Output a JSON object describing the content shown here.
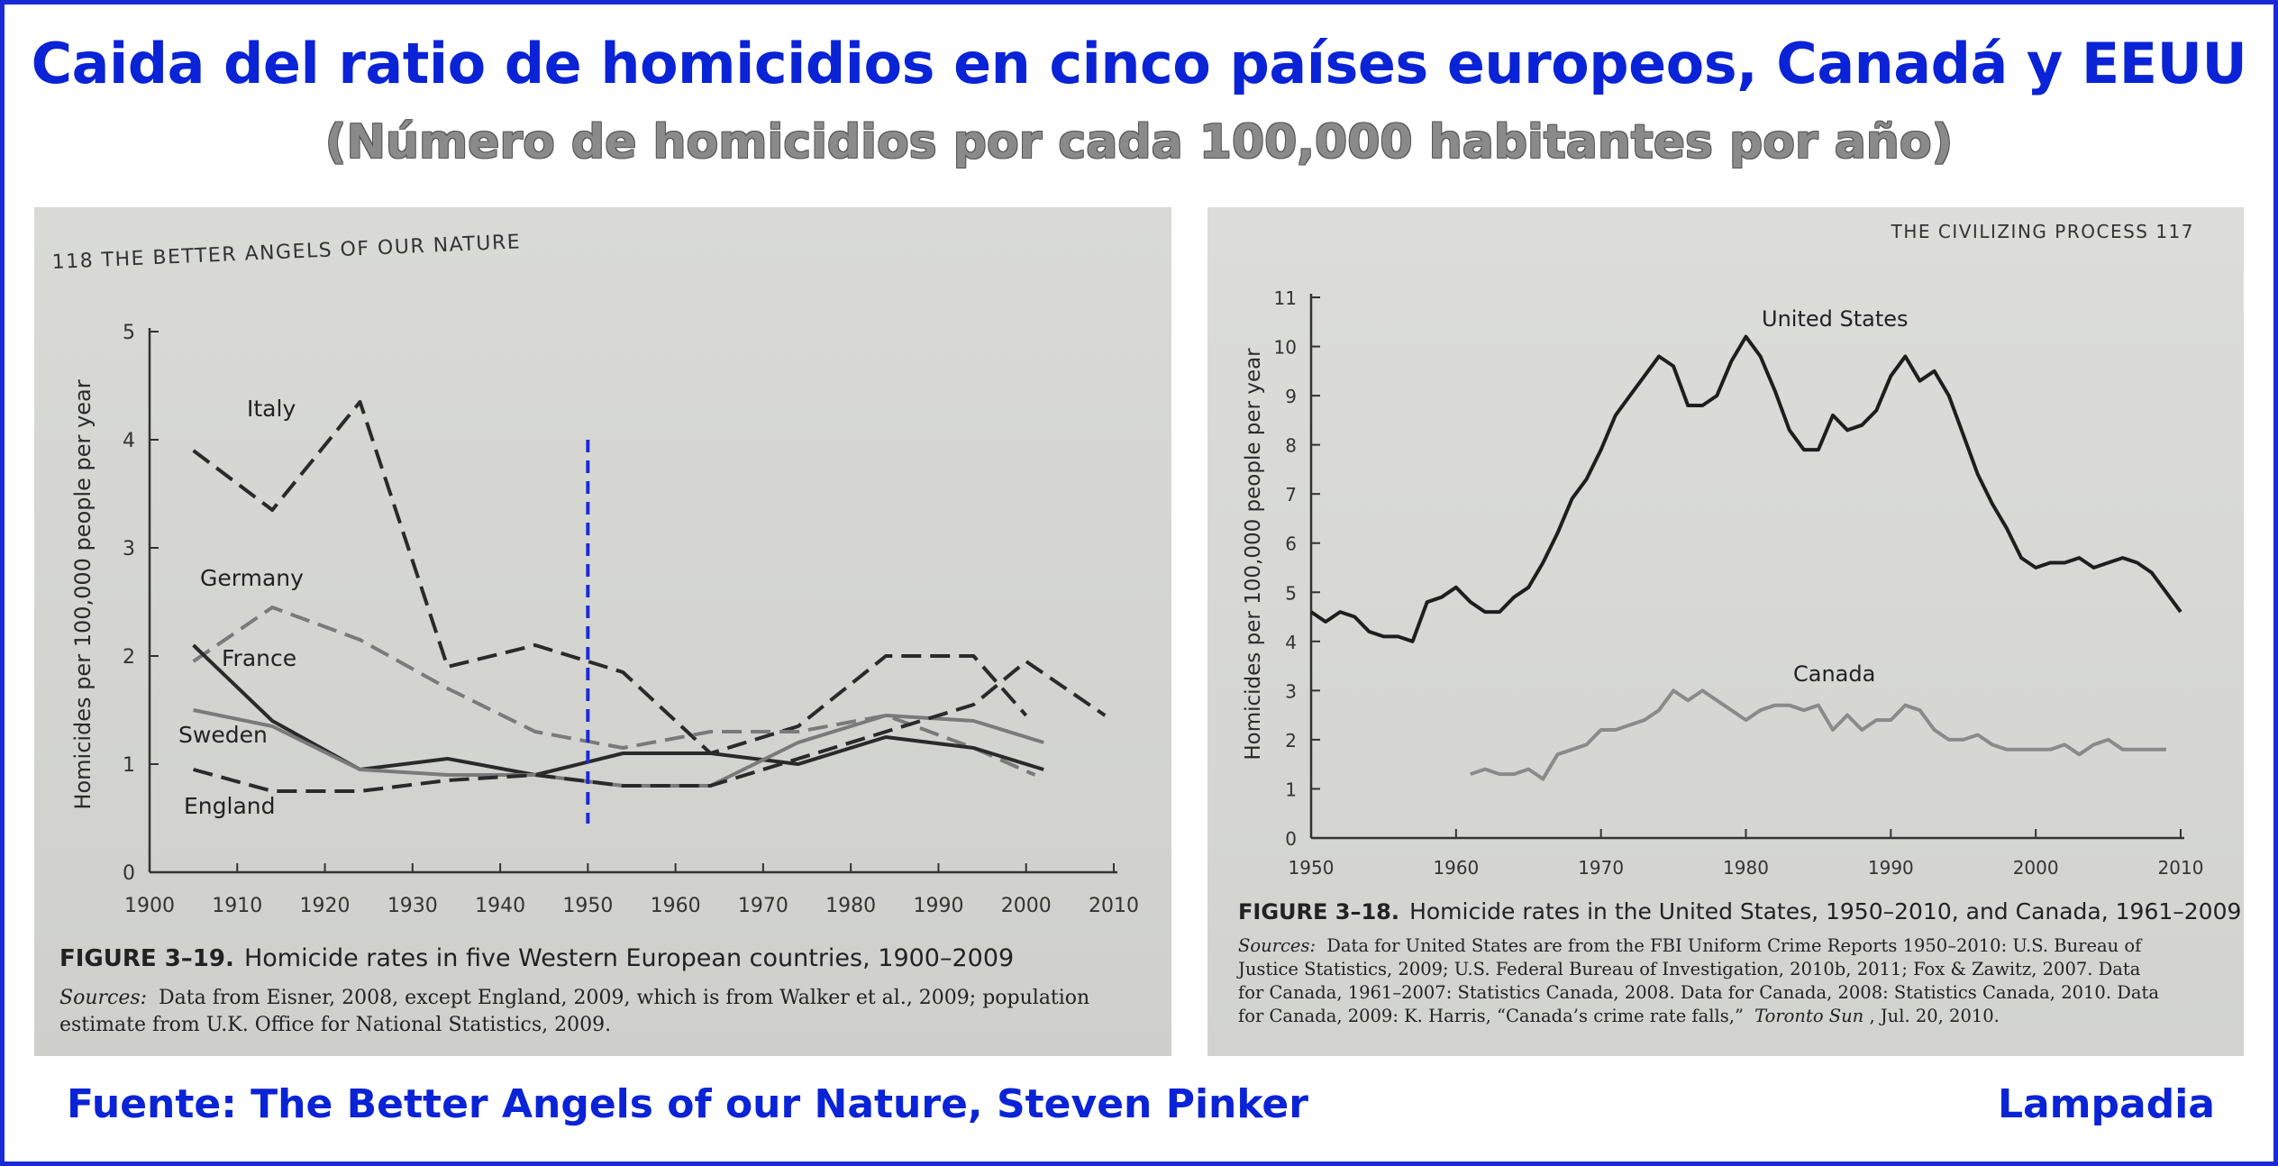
{
  "header": {
    "title": "Caida del ratio de homicidios en cinco países europeos, Canadá y EEUU",
    "subtitle": "(Número de homicidios por cada 100,000 habitantes por año)"
  },
  "footer": {
    "source": "Fuente: The Better Angels of our Nature, Steven Pinker",
    "brand": "Lampadia"
  },
  "colors": {
    "accent": "#0a23d6",
    "subtitle": "#8a8a8a",
    "ink": "#2a2a2a",
    "gray_series": "#7a7a7a",
    "marker_line": "#1a2bd6"
  },
  "left_page": {
    "running_head": "118  THE BETTER ANGELS OF OUR NATURE",
    "caption_label": "FIGURE 3–19.",
    "caption_text": "Homicide rates in five Western European countries, 1900–2009",
    "sources_label": "Sources:",
    "sources_line1": "Data from Eisner, 2008, except England, 2009, which is from Walker et al., 2009; population",
    "sources_line2": "estimate from U.K. Office for National Statistics, 2009."
  },
  "right_page": {
    "running_head": "THE CIVILIZING PROCESS  117",
    "caption_label": "FIGURE 3–18.",
    "caption_text": "Homicide rates in the United States, 1950–2010, and Canada, 1961–2009",
    "sources_label": "Sources:",
    "sources_line1": "Data for United States are from the FBI Uniform Crime Reports 1950–2010: U.S. Bureau of",
    "sources_line2": "Justice Statistics, 2009; U.S. Federal Bureau of Investigation, 2010b, 2011; Fox & Zawitz, 2007. Data",
    "sources_line3": "for Canada, 1961–2007: Statistics Canada, 2008. Data for Canada, 2008: Statistics Canada, 2010. Data",
    "sources_line4": "for Canada, 2009: K. Harris, “Canada’s crime rate falls,”",
    "sources_italic": "Toronto Sun",
    "sources_end": ", Jul. 20, 2010."
  },
  "chart_data": [
    {
      "type": "line",
      "ylabel": "Homicides per 100,000 people per year",
      "xlabel": "",
      "xlim": [
        1900,
        2010
      ],
      "ylim": [
        0,
        5
      ],
      "x_ticks": [
        1900,
        1910,
        1920,
        1930,
        1940,
        1950,
        1960,
        1970,
        1980,
        1990,
        2000,
        2010
      ],
      "y_ticks": [
        0,
        1,
        2,
        3,
        4,
        5
      ],
      "annotation_year": 1950,
      "series": [
        {
          "name": "Italy",
          "style": "dash",
          "color": "#2a2a2a",
          "x": [
            1905,
            1914,
            1924,
            1934,
            1944,
            1950,
            1954,
            1964,
            1974,
            1984,
            1994,
            2000
          ],
          "y": [
            3.9,
            3.35,
            4.35,
            1.9,
            2.1,
            1.95,
            1.85,
            1.1,
            1.35,
            2.0,
            2.0,
            1.45
          ]
        },
        {
          "name": "Germany",
          "style": "dash",
          "color": "#7a7a7a",
          "x": [
            1905,
            1914,
            1924,
            1934,
            1944,
            1954,
            1964,
            1974,
            1984,
            1994,
            2001
          ],
          "y": [
            1.95,
            2.45,
            2.15,
            1.7,
            1.3,
            1.15,
            1.3,
            1.3,
            1.45,
            1.15,
            0.9
          ]
        },
        {
          "name": "France",
          "style": "solid",
          "color": "#2a2a2a",
          "x": [
            1905,
            1914,
            1924,
            1934,
            1944,
            1954,
            1964,
            1974,
            1984,
            1994,
            2002
          ],
          "y": [
            2.1,
            1.4,
            0.95,
            1.05,
            0.9,
            1.1,
            1.1,
            1.0,
            1.25,
            1.15,
            0.95
          ]
        },
        {
          "name": "Sweden",
          "style": "solid",
          "color": "#7a7a7a",
          "x": [
            1905,
            1914,
            1924,
            1934,
            1944,
            1954,
            1964,
            1974,
            1984,
            1994,
            2002
          ],
          "y": [
            1.5,
            1.35,
            0.95,
            0.9,
            0.9,
            0.8,
            0.8,
            1.2,
            1.45,
            1.4,
            1.2
          ]
        },
        {
          "name": "England",
          "style": "dash",
          "color": "#2a2a2a",
          "x": [
            1905,
            1914,
            1924,
            1934,
            1944,
            1954,
            1964,
            1974,
            1984,
            1994,
            2000,
            2009
          ],
          "y": [
            0.95,
            0.75,
            0.75,
            0.85,
            0.9,
            0.8,
            0.8,
            1.05,
            1.3,
            1.55,
            1.95,
            1.45
          ]
        }
      ]
    },
    {
      "type": "line",
      "ylabel": "Homicides per 100,000 people per year",
      "xlabel": "",
      "xlim": [
        1950,
        2010
      ],
      "ylim": [
        0,
        11
      ],
      "x_ticks": [
        1950,
        1960,
        1970,
        1980,
        1990,
        2000,
        2010
      ],
      "y_ticks": [
        0,
        1,
        2,
        3,
        4,
        5,
        6,
        7,
        8,
        9,
        10,
        11
      ],
      "series": [
        {
          "name": "United States",
          "style": "solid",
          "color": "#1e1e1e",
          "x": [
            1950,
            1951,
            1952,
            1953,
            1954,
            1955,
            1956,
            1957,
            1958,
            1959,
            1960,
            1961,
            1962,
            1963,
            1964,
            1965,
            1966,
            1967,
            1968,
            1969,
            1970,
            1971,
            1972,
            1973,
            1974,
            1975,
            1976,
            1977,
            1978,
            1979,
            1980,
            1981,
            1982,
            1983,
            1984,
            1985,
            1986,
            1987,
            1988,
            1989,
            1990,
            1991,
            1992,
            1993,
            1994,
            1995,
            1996,
            1997,
            1998,
            1999,
            2000,
            2001,
            2002,
            2003,
            2004,
            2005,
            2006,
            2007,
            2008,
            2009,
            2010
          ],
          "y": [
            4.6,
            4.4,
            4.6,
            4.5,
            4.2,
            4.1,
            4.1,
            4.0,
            4.8,
            4.9,
            5.1,
            4.8,
            4.6,
            4.6,
            4.9,
            5.1,
            5.6,
            6.2,
            6.9,
            7.3,
            7.9,
            8.6,
            9.0,
            9.4,
            9.8,
            9.6,
            8.8,
            8.8,
            9.0,
            9.7,
            10.2,
            9.8,
            9.1,
            8.3,
            7.9,
            7.9,
            8.6,
            8.3,
            8.4,
            8.7,
            9.4,
            9.8,
            9.3,
            9.5,
            9.0,
            8.2,
            7.4,
            6.8,
            6.3,
            5.7,
            5.5,
            5.6,
            5.6,
            5.7,
            5.5,
            5.6,
            5.7,
            5.6,
            5.4,
            5.0,
            4.6
          ]
        },
        {
          "name": "Canada",
          "style": "solid",
          "color": "#8a8a8a",
          "x": [
            1961,
            1962,
            1963,
            1964,
            1965,
            1966,
            1967,
            1968,
            1969,
            1970,
            1971,
            1972,
            1973,
            1974,
            1975,
            1976,
            1977,
            1978,
            1979,
            1980,
            1981,
            1982,
            1983,
            1984,
            1985,
            1986,
            1987,
            1988,
            1989,
            1990,
            1991,
            1992,
            1993,
            1994,
            1995,
            1996,
            1997,
            1998,
            1999,
            2000,
            2001,
            2002,
            2003,
            2004,
            2005,
            2006,
            2007,
            2008,
            2009
          ],
          "y": [
            1.3,
            1.4,
            1.3,
            1.3,
            1.4,
            1.2,
            1.7,
            1.8,
            1.9,
            2.2,
            2.2,
            2.3,
            2.4,
            2.6,
            3.0,
            2.8,
            3.0,
            2.8,
            2.6,
            2.4,
            2.6,
            2.7,
            2.7,
            2.6,
            2.7,
            2.2,
            2.5,
            2.2,
            2.4,
            2.4,
            2.7,
            2.6,
            2.2,
            2.0,
            2.0,
            2.1,
            1.9,
            1.8,
            1.8,
            1.8,
            1.8,
            1.9,
            1.7,
            1.9,
            2.0,
            1.8,
            1.8,
            1.8,
            1.8
          ]
        }
      ]
    }
  ]
}
